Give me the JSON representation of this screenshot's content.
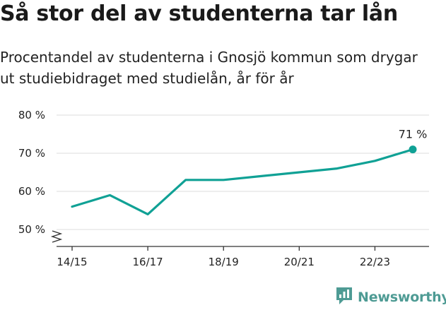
{
  "title": "Så stor del av studenterna tar lån",
  "subtitle": "Procentandel av studenterna i Gnosjö kommun som drygar ut studiebidraget med studielån, år för år",
  "brand": {
    "name": "Newsworthy",
    "icon": "newsworthy-logo-icon",
    "color": "#4e9b94"
  },
  "colors": {
    "line": "#10a195",
    "grid": "#dddddd",
    "axis": "#333333"
  },
  "chart_data": {
    "type": "line",
    "title": "Så stor del av studenterna tar lån",
    "subtitle": "Procentandel av studenterna i Gnosjö kommun som drygar ut studiebidraget med studielån, år för år",
    "x": [
      "14/15",
      "15/16",
      "16/17",
      "17/18",
      "18/19",
      "19/20",
      "20/21",
      "21/22",
      "22/23",
      "23/24"
    ],
    "x_tick_labels": [
      "14/15",
      "16/17",
      "18/19",
      "20/21",
      "22/23"
    ],
    "series": [
      {
        "values": [
          56,
          59,
          54,
          63,
          63,
          64,
          65,
          66,
          68,
          71
        ]
      }
    ],
    "ylim": [
      50,
      80
    ],
    "y_ticks": [
      50,
      60,
      70,
      80
    ],
    "y_tick_labels": [
      "50 %",
      "60 %",
      "70 %",
      "80 %"
    ],
    "y_axis_break": true,
    "grid": true,
    "end_label": "71 %"
  }
}
